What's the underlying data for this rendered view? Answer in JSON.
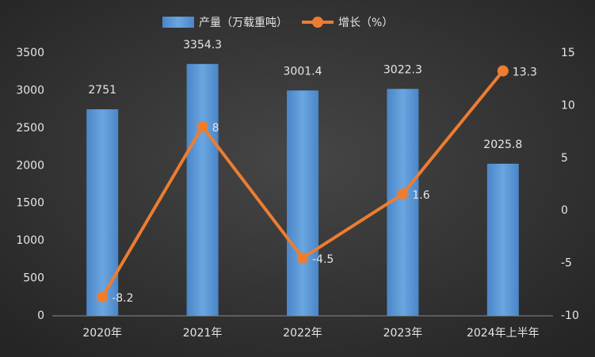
{
  "chart_data": {
    "type": "combo",
    "categories": [
      "2020年",
      "2021年",
      "2022年",
      "2023年",
      "2024年上半年"
    ],
    "series": [
      {
        "name": "产量（万载重吨）",
        "type": "bar",
        "color": "#5b9bd5",
        "values": [
          2751,
          3354.3,
          3001.4,
          3022.3,
          2025.8
        ]
      },
      {
        "name": "增长（%）",
        "type": "line",
        "axis": "y2",
        "color": "#ed7d31",
        "values": [
          -8.2,
          8,
          -4.5,
          1.6,
          13.3
        ]
      }
    ],
    "ylim": [
      0,
      3500
    ],
    "yticks": [
      0,
      500,
      1000,
      1500,
      2000,
      2500,
      3000,
      3500
    ],
    "y2lim": [
      -10,
      15
    ],
    "y2ticks": [
      -10,
      -5,
      0,
      5,
      10,
      15
    ],
    "grid": false
  }
}
